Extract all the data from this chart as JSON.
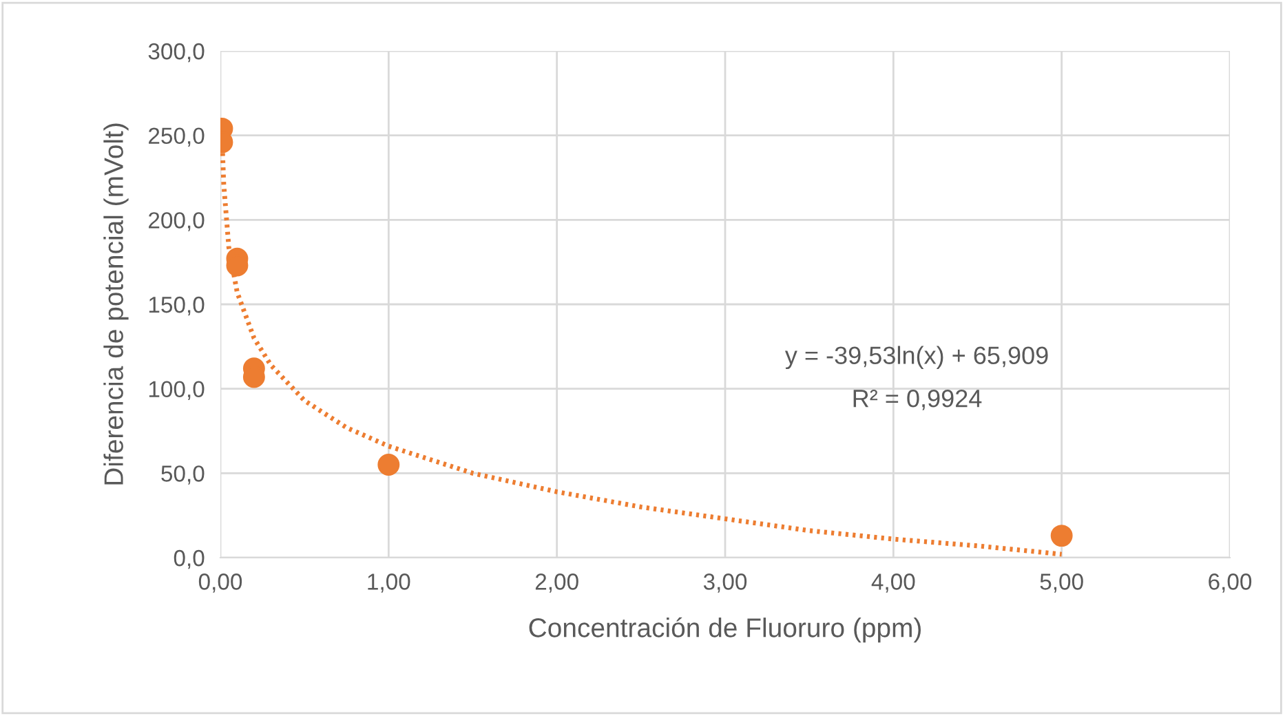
{
  "chart_data": {
    "type": "scatter",
    "xlabel": "Concentración de Fluoruro (ppm)",
    "ylabel": "Diferencia de potencial (mVolt)",
    "xlim": [
      0,
      6
    ],
    "ylim": [
      0,
      300
    ],
    "xticks": [
      {
        "value": 0,
        "label": "0,00"
      },
      {
        "value": 1,
        "label": "1,00"
      },
      {
        "value": 2,
        "label": "2,00"
      },
      {
        "value": 3,
        "label": "3,00"
      },
      {
        "value": 4,
        "label": "4,00"
      },
      {
        "value": 5,
        "label": "5,00"
      },
      {
        "value": 6,
        "label": "6,00"
      }
    ],
    "yticks": [
      {
        "value": 0,
        "label": "0,0"
      },
      {
        "value": 50,
        "label": "50,0"
      },
      {
        "value": 100,
        "label": "100,0"
      },
      {
        "value": 150,
        "label": "150,0"
      },
      {
        "value": 200,
        "label": "200,0"
      },
      {
        "value": 250,
        "label": "250,0"
      },
      {
        "value": 300,
        "label": "300,0"
      }
    ],
    "grid": true,
    "series": [
      {
        "marker": "circle",
        "color": "#ed7d31",
        "x": [
          0.01,
          0.01,
          0.1,
          0.1,
          0.2,
          0.2,
          1,
          5
        ],
        "values": [
          254,
          246,
          177,
          173,
          112,
          107,
          55,
          13
        ]
      },
      {
        "type": "line",
        "color": "#ed7d31",
        "line_style": "dotted",
        "marker": "none",
        "x": [
          0.01,
          0.02,
          0.05,
          0.1,
          0.2,
          0.3,
          0.5,
          0.75,
          1,
          1.5,
          2,
          2.5,
          3,
          3.5,
          4,
          4.5,
          5
        ],
        "values": [
          248,
          221,
          184,
          157,
          130,
          114,
          93,
          77,
          66,
          50,
          39,
          30,
          23,
          16,
          11,
          7,
          2
        ]
      }
    ],
    "annotations": [
      "y = -39,53ln(x) + 65,909",
      "R² = 0,9924"
    ]
  }
}
